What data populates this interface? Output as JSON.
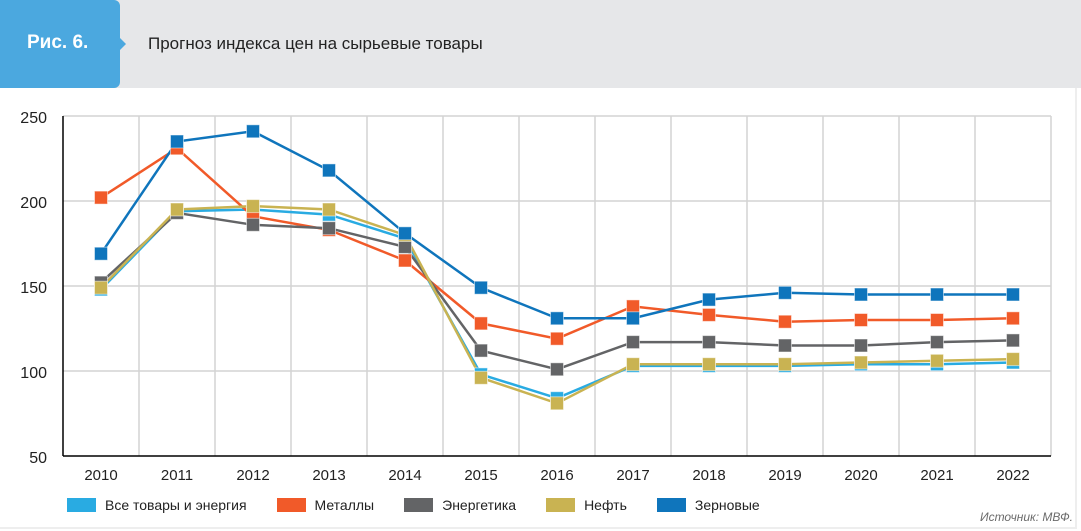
{
  "header": {
    "figure_label": "Рис. 6.",
    "title": "Прогноз индекса цен на сырьевые товары"
  },
  "source": "Источник: МВФ.",
  "chart_data": {
    "type": "line",
    "title": "Прогноз индекса цен на сырьевые товары",
    "xlabel": "",
    "ylabel": "",
    "x": [
      "2010",
      "2011",
      "2012",
      "2013",
      "2014",
      "2015",
      "2016",
      "2017",
      "2018",
      "2019",
      "2020",
      "2021",
      "2022"
    ],
    "ylim": [
      50,
      250
    ],
    "yticks": [
      50,
      100,
      150,
      200,
      250
    ],
    "grid": true,
    "legend_position": "bottom",
    "marker": "square",
    "series": [
      {
        "name": "Все товары и энергия",
        "color": "#29abe2",
        "values": [
          148,
          194,
          195,
          192,
          178,
          98,
          84,
          103,
          103,
          103,
          104,
          104,
          105
        ]
      },
      {
        "name": "Металлы",
        "color": "#f15a29",
        "values": [
          202,
          231,
          191,
          183,
          165,
          128,
          119,
          138,
          133,
          129,
          130,
          130,
          131
        ]
      },
      {
        "name": "Энергетика",
        "color": "#636466",
        "values": [
          152,
          193,
          186,
          184,
          173,
          112,
          101,
          117,
          117,
          115,
          115,
          117,
          118
        ]
      },
      {
        "name": "Нефть",
        "color": "#c9b352",
        "values": [
          149,
          195,
          197,
          195,
          180,
          96,
          81,
          104,
          104,
          104,
          105,
          106,
          107
        ]
      },
      {
        "name": "Зерновые",
        "color": "#0f75bc",
        "values": [
          169,
          235,
          241,
          218,
          181,
          149,
          131,
          131,
          142,
          146,
          145,
          145,
          145
        ]
      }
    ]
  }
}
